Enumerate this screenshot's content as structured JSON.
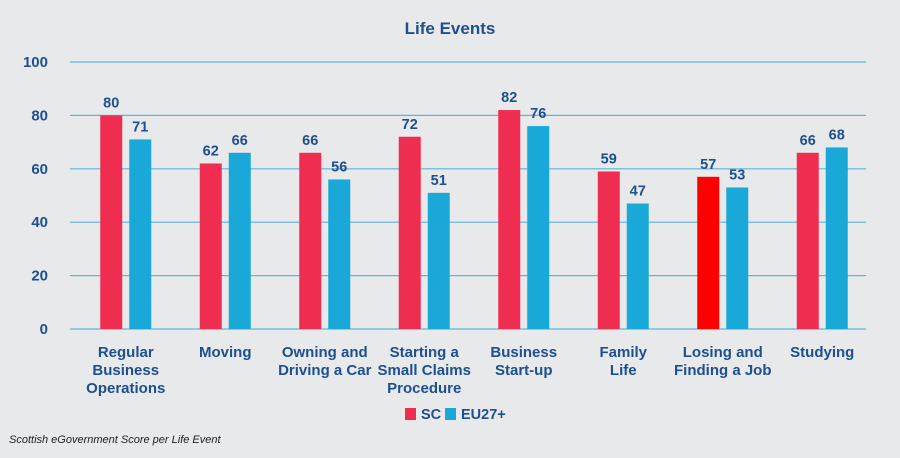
{
  "chart_data": {
    "type": "bar",
    "title": "Life Events",
    "categories": [
      [
        "Regular",
        "Business",
        "Operations"
      ],
      [
        "Moving"
      ],
      [
        "Owning and",
        "Driving a Car"
      ],
      [
        "Starting a",
        "Small Claims",
        "Procedure"
      ],
      [
        "Business",
        "Start-up"
      ],
      [
        "Family",
        "Life"
      ],
      [
        "Losing and",
        "Finding a Job"
      ],
      [
        "Studying"
      ]
    ],
    "series": [
      {
        "name": "SC",
        "color": "#ef2d50",
        "values": [
          80,
          62,
          66,
          72,
          82,
          59,
          57,
          66
        ]
      },
      {
        "name": "EU27+",
        "color": "#1aa8d8",
        "values": [
          71,
          66,
          56,
          51,
          76,
          47,
          53,
          68
        ]
      }
    ],
    "highlight": {
      "series": 0,
      "index": 6,
      "color": "#ff0000"
    },
    "ylim": [
      0,
      100
    ],
    "yticks": [
      0,
      20,
      40,
      60,
      80,
      100
    ],
    "grid": true,
    "legend": "bottom-center"
  },
  "caption": "Scottish eGovernment Score per Life Event"
}
